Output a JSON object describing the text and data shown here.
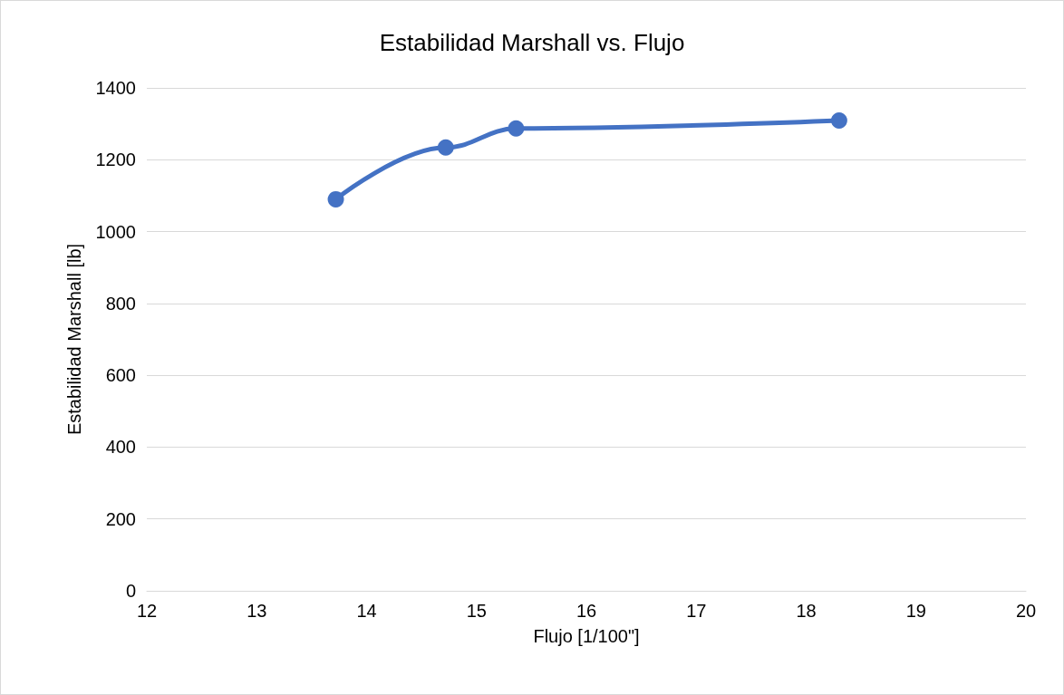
{
  "chart_data": {
    "type": "line",
    "title": "Estabilidad Marshall vs. Flujo",
    "xlabel": "Flujo [1/100\"]",
    "ylabel": "Estabilidad Marshall [lb]",
    "series": [
      {
        "color": "#4472c4",
        "x": [
          13.72,
          14.72,
          15.36,
          18.3
        ],
        "values": [
          1090,
          1234,
          1287,
          1309
        ]
      }
    ],
    "xlim": [
      12,
      20
    ],
    "xticks": [
      12,
      13,
      14,
      15,
      16,
      17,
      18,
      19,
      20
    ],
    "ylim": [
      0,
      1400
    ],
    "yticks": [
      0,
      200,
      400,
      600,
      800,
      1000,
      1200,
      1400
    ],
    "grid": "y",
    "marker": "circle",
    "line_style": "solid"
  }
}
